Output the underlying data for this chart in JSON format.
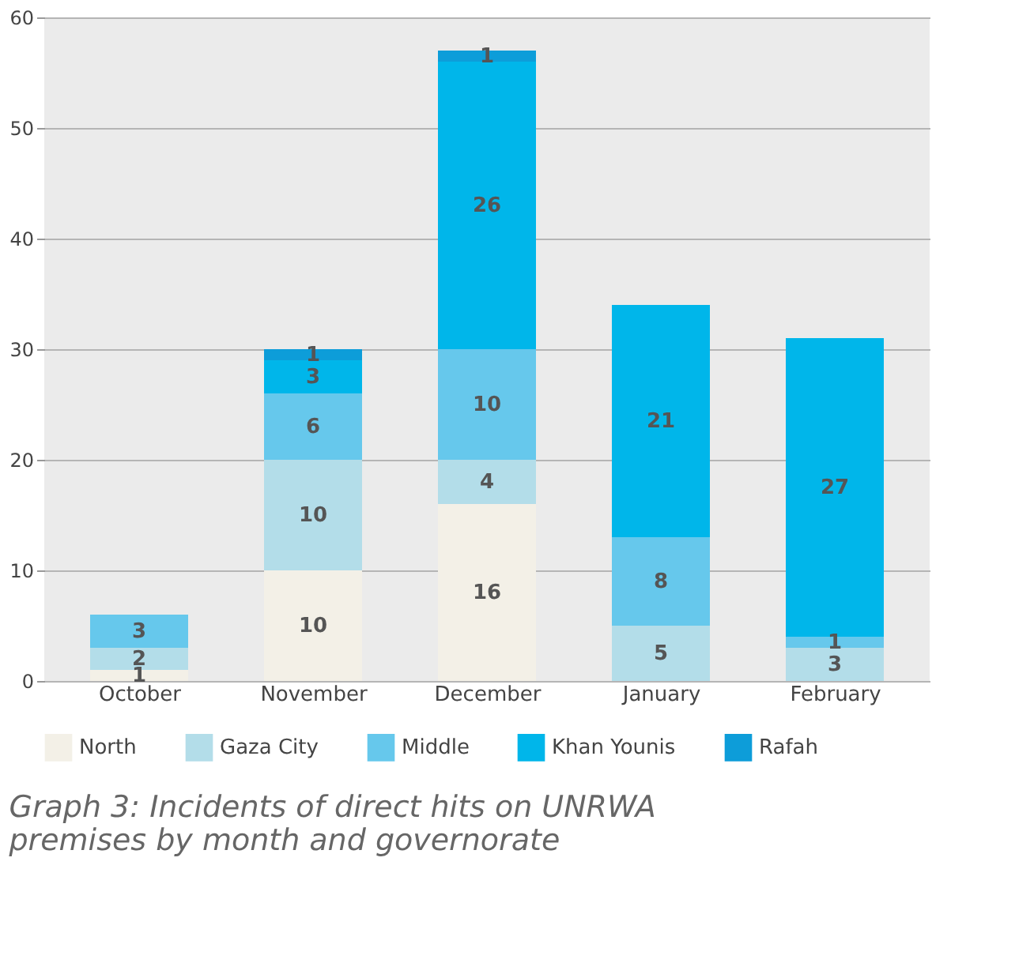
{
  "chart_data": {
    "type": "bar",
    "stacked": true,
    "title": "Graph 3: Incidents of direct hits on UNRWA premises by month and governorate",
    "categories": [
      "October",
      "November",
      "December",
      "January",
      "February"
    ],
    "series": [
      {
        "name": "North",
        "color": "#f3f0e7",
        "values": [
          1,
          10,
          16,
          0,
          0
        ],
        "value_labels": [
          "1",
          "10",
          "16",
          null,
          null
        ]
      },
      {
        "name": "Gaza City",
        "color": "#b3dde9",
        "values": [
          2,
          10,
          4,
          5,
          3
        ],
        "value_labels": [
          "2",
          "10",
          "4",
          "5",
          "3"
        ]
      },
      {
        "name": "Middle",
        "color": "#66c8ec",
        "values": [
          3,
          6,
          10,
          8,
          1
        ],
        "value_labels": [
          "3",
          "6",
          "10",
          "8",
          "1"
        ]
      },
      {
        "name": "Khan Younis",
        "color": "#00b6ea",
        "values": [
          0,
          3,
          26,
          21,
          27
        ],
        "value_labels": [
          null,
          "3",
          "26",
          "21",
          "27"
        ]
      },
      {
        "name": "Rafah",
        "color": "#0d9dd9",
        "values": [
          0,
          1,
          1,
          0,
          0
        ],
        "value_labels": [
          null,
          "1",
          "1",
          null,
          null
        ]
      }
    ],
    "ylim": [
      0,
      60
    ],
    "yticks": [
      0,
      10,
      20,
      30,
      40,
      50,
      60
    ],
    "grid": "y",
    "legend": "bottom"
  }
}
